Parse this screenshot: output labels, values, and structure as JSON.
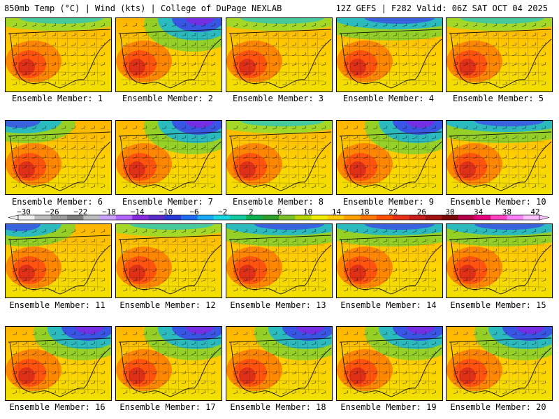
{
  "header": {
    "left": "850mb Temp (°C) | Wind (kts) | College of DuPage NEXLAB",
    "right": "12Z GEFS | F282 Valid: 06Z SAT OCT 04 2025"
  },
  "members": [
    {
      "label": "Ensemble Member: 1",
      "cold": "light-north"
    },
    {
      "label": "Ensemble Member: 2",
      "cold": "northeast"
    },
    {
      "label": "Ensemble Member: 3",
      "cold": "light-north"
    },
    {
      "label": "Ensemble Member: 4",
      "cold": "north"
    },
    {
      "label": "Ensemble Member: 5",
      "cold": "light-north"
    },
    {
      "label": "Ensemble Member: 6",
      "cold": "northwest"
    },
    {
      "label": "Ensemble Member: 7",
      "cold": "northeast"
    },
    {
      "label": "Ensemble Member: 8",
      "cold": "light-north"
    },
    {
      "label": "Ensemble Member: 9",
      "cold": "northeast"
    },
    {
      "label": "Ensemble Member: 10",
      "cold": "north"
    },
    {
      "label": "Ensemble Member: 11",
      "cold": "northwest"
    },
    {
      "label": "Ensemble Member: 12",
      "cold": "light-north"
    },
    {
      "label": "Ensemble Member: 13",
      "cold": "north"
    },
    {
      "label": "Ensemble Member: 14",
      "cold": "north"
    },
    {
      "label": "Ensemble Member: 15",
      "cold": "north"
    },
    {
      "label": "Ensemble Member: 16",
      "cold": "northeast"
    },
    {
      "label": "Ensemble Member: 17",
      "cold": "northeast"
    },
    {
      "label": "Ensemble Member: 18",
      "cold": "northeast"
    },
    {
      "label": "Ensemble Member: 19",
      "cold": "northeast"
    },
    {
      "label": "Ensemble Member: 20",
      "cold": "northeast"
    }
  ],
  "colorbar": {
    "ticks": [
      "-30",
      "-26",
      "-22",
      "-18",
      "-14",
      "-10",
      "-6",
      "-2",
      "2",
      "6",
      "10",
      "14",
      "18",
      "22",
      "26",
      "30",
      "34",
      "38",
      "42"
    ],
    "colors": [
      "#f0f0f0",
      "#bdbdbd",
      "#9c9c9c",
      "#7f7f7f",
      "#bcbcbc",
      "#c9a0ff",
      "#b266ff",
      "#8a2be2",
      "#5a2cc8",
      "#2a3ad8",
      "#1e6cf0",
      "#1aa7f5",
      "#1ad3e0",
      "#14c8a0",
      "#10b050",
      "#2ea02e",
      "#7ac02a",
      "#b6d400",
      "#f0ea00",
      "#ffc800",
      "#ffa000",
      "#ff7800",
      "#ff5000",
      "#e63219",
      "#c81e1e",
      "#a01414",
      "#7a0a0a",
      "#b4004b",
      "#e6007a",
      "#ff40c0",
      "#ff80ff",
      "#ffc0ff"
    ]
  }
}
